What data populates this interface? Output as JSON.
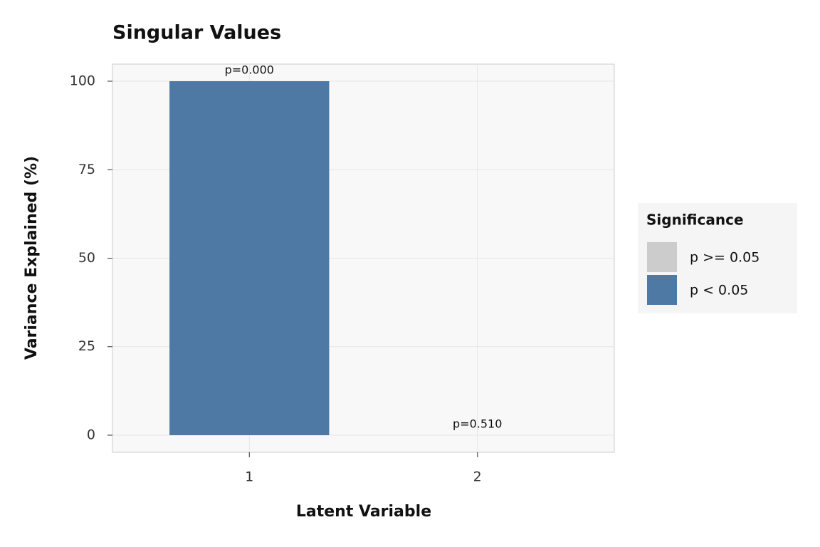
{
  "chart_data": {
    "type": "bar",
    "title": "Singular Values",
    "x_label": "Latent Variable",
    "y_label": "Variance Explained (%)",
    "categories": [
      "1",
      "2"
    ],
    "series": [
      {
        "name": "p >= 0.05",
        "color": "#cccccc",
        "values": [
          null,
          0
        ]
      },
      {
        "name": "p < 0.05",
        "color": "#4e79a5",
        "values": [
          100,
          null
        ]
      }
    ],
    "annotations": [
      "p=0.000",
      "p=0.510"
    ],
    "legend_title": "Significance",
    "legend": "right",
    "ylim": [
      -4.83,
      104.83
    ],
    "yticks": [
      0,
      25,
      50,
      75,
      100
    ],
    "grid": true
  }
}
